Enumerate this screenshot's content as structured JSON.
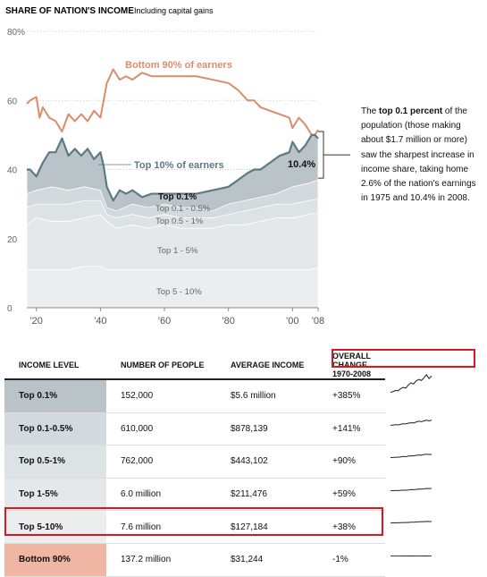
{
  "title": "SHARE OF NATION'S INCOME",
  "subtitle": "Including capital gains",
  "callout": {
    "pre": "The ",
    "bold": "top 0.1 percent",
    "post": " of the population (those making about $1.7 million or more) saw the sharpest increase in income share, taking home 2.6% of the nation's earnings in 1975 and 10.4% in 2008."
  },
  "chart_data": {
    "type": "area",
    "ylim": [
      0,
      80
    ],
    "xlim": [
      1917,
      2008
    ],
    "y_ticks": [
      "80%",
      "60",
      "40",
      "20",
      "0"
    ],
    "y_tick_values": [
      80,
      60,
      40,
      20,
      0
    ],
    "x_ticks": [
      "'20",
      "'40",
      "'60",
      "'80",
      "'00",
      "'08"
    ],
    "x_tick_values": [
      1920,
      1940,
      1960,
      1980,
      2000,
      2008
    ],
    "grid": true,
    "labels": {
      "bottom90": "Bottom 90% of earners",
      "top10": "Top 10% of earners",
      "top01": "Top 0.1%",
      "top01_05": "Top 0.1 - 0.5%",
      "top05_1": "Top 0.5 - 1%",
      "top1_5": "Top 1 - 5%",
      "top5_10": "Top 5 - 10%",
      "end_value": "10.4%"
    },
    "series": [
      {
        "name": "Top 5 - 10%",
        "color": "#ebeeef",
        "points": [
          [
            1917,
            11
          ],
          [
            1920,
            11
          ],
          [
            1925,
            11
          ],
          [
            1930,
            11
          ],
          [
            1935,
            12
          ],
          [
            1940,
            12
          ],
          [
            1942,
            11
          ],
          [
            1945,
            11
          ],
          [
            1950,
            11
          ],
          [
            1955,
            11
          ],
          [
            1960,
            11
          ],
          [
            1965,
            11
          ],
          [
            1970,
            11
          ],
          [
            1975,
            11
          ],
          [
            1980,
            11
          ],
          [
            1985,
            11
          ],
          [
            1990,
            11
          ],
          [
            1995,
            11
          ],
          [
            2000,
            11
          ],
          [
            2005,
            11
          ],
          [
            2008,
            11.5
          ]
        ]
      },
      {
        "name": "Top 1 - 5%",
        "color": "#e4e8ea",
        "points": [
          [
            1917,
            24
          ],
          [
            1920,
            26
          ],
          [
            1925,
            25
          ],
          [
            1930,
            25
          ],
          [
            1935,
            26
          ],
          [
            1940,
            27
          ],
          [
            1942,
            25
          ],
          [
            1945,
            23
          ],
          [
            1950,
            24
          ],
          [
            1955,
            23
          ],
          [
            1960,
            24
          ],
          [
            1965,
            23
          ],
          [
            1970,
            23
          ],
          [
            1975,
            23
          ],
          [
            1980,
            24
          ],
          [
            1985,
            24
          ],
          [
            1990,
            25
          ],
          [
            1995,
            26
          ],
          [
            2000,
            26
          ],
          [
            2005,
            27
          ],
          [
            2008,
            27.5
          ]
        ]
      },
      {
        "name": "Top 0.5 - 1%",
        "color": "#dde2e5",
        "points": [
          [
            1917,
            29
          ],
          [
            1920,
            30
          ],
          [
            1925,
            30
          ],
          [
            1930,
            30
          ],
          [
            1935,
            31
          ],
          [
            1940,
            31
          ],
          [
            1942,
            27
          ],
          [
            1945,
            26
          ],
          [
            1950,
            27
          ],
          [
            1955,
            26
          ],
          [
            1960,
            27
          ],
          [
            1965,
            26
          ],
          [
            1970,
            26
          ],
          [
            1975,
            26
          ],
          [
            1980,
            27
          ],
          [
            1985,
            28
          ],
          [
            1990,
            29
          ],
          [
            1995,
            30
          ],
          [
            2000,
            30
          ],
          [
            2005,
            31
          ],
          [
            2008,
            31.5
          ]
        ]
      },
      {
        "name": "Top 0.1 - 0.5%",
        "color": "#d3d9dd",
        "points": [
          [
            1917,
            33
          ],
          [
            1920,
            34
          ],
          [
            1925,
            35
          ],
          [
            1930,
            34
          ],
          [
            1935,
            35
          ],
          [
            1940,
            34
          ],
          [
            1942,
            29
          ],
          [
            1945,
            28
          ],
          [
            1950,
            30
          ],
          [
            1955,
            29
          ],
          [
            1960,
            30
          ],
          [
            1965,
            29
          ],
          [
            1970,
            29
          ],
          [
            1975,
            28
          ],
          [
            1980,
            30
          ],
          [
            1985,
            31
          ],
          [
            1990,
            32
          ],
          [
            1995,
            33
          ],
          [
            2000,
            35
          ],
          [
            2005,
            36
          ],
          [
            2008,
            37
          ]
        ]
      },
      {
        "name": "Top 0.1%",
        "color": "#b9c3c8",
        "points": [
          [
            1917,
            40
          ],
          [
            1918,
            40
          ],
          [
            1920,
            38
          ],
          [
            1922,
            42
          ],
          [
            1924,
            45
          ],
          [
            1926,
            45
          ],
          [
            1928,
            49
          ],
          [
            1930,
            44
          ],
          [
            1932,
            46
          ],
          [
            1934,
            44
          ],
          [
            1936,
            46
          ],
          [
            1938,
            43
          ],
          [
            1940,
            45
          ],
          [
            1941,
            41
          ],
          [
            1942,
            35
          ],
          [
            1944,
            31
          ],
          [
            1946,
            34
          ],
          [
            1948,
            33
          ],
          [
            1950,
            34
          ],
          [
            1953,
            32
          ],
          [
            1956,
            33
          ],
          [
            1960,
            33
          ],
          [
            1963,
            33
          ],
          [
            1966,
            33
          ],
          [
            1970,
            33
          ],
          [
            1975,
            34
          ],
          [
            1980,
            35
          ],
          [
            1983,
            37
          ],
          [
            1986,
            39
          ],
          [
            1988,
            40
          ],
          [
            1990,
            40
          ],
          [
            1993,
            42
          ],
          [
            1996,
            44
          ],
          [
            1999,
            45
          ],
          [
            2000,
            48
          ],
          [
            2002,
            45
          ],
          [
            2004,
            47
          ],
          [
            2006,
            50
          ],
          [
            2007,
            50
          ],
          [
            2008,
            49
          ]
        ]
      }
    ],
    "bottom90_line": [
      [
        1917,
        59
      ],
      [
        1918,
        60
      ],
      [
        1920,
        61
      ],
      [
        1921,
        55
      ],
      [
        1922,
        58
      ],
      [
        1924,
        55
      ],
      [
        1926,
        54
      ],
      [
        1928,
        51
      ],
      [
        1930,
        56
      ],
      [
        1932,
        54
      ],
      [
        1934,
        56
      ],
      [
        1936,
        54
      ],
      [
        1938,
        57
      ],
      [
        1940,
        55
      ],
      [
        1941,
        60
      ],
      [
        1942,
        65
      ],
      [
        1944,
        69
      ],
      [
        1946,
        66
      ],
      [
        1948,
        67
      ],
      [
        1950,
        66
      ],
      [
        1953,
        68
      ],
      [
        1956,
        67
      ],
      [
        1960,
        67
      ],
      [
        1963,
        67
      ],
      [
        1966,
        67
      ],
      [
        1970,
        67
      ],
      [
        1975,
        66
      ],
      [
        1980,
        65
      ],
      [
        1983,
        63
      ],
      [
        1986,
        60
      ],
      [
        1988,
        60
      ],
      [
        1990,
        58
      ],
      [
        1993,
        57
      ],
      [
        1996,
        56
      ],
      [
        1999,
        55
      ],
      [
        2000,
        52
      ],
      [
        2002,
        55
      ],
      [
        2004,
        53
      ],
      [
        2006,
        50
      ],
      [
        2007,
        50
      ],
      [
        2008,
        51.5
      ]
    ],
    "top10_line": [
      [
        1917,
        40
      ],
      [
        1918,
        40
      ],
      [
        1920,
        38
      ],
      [
        1922,
        42
      ],
      [
        1924,
        45
      ],
      [
        1926,
        45
      ],
      [
        1928,
        49
      ],
      [
        1930,
        44
      ],
      [
        1932,
        46
      ],
      [
        1934,
        44
      ],
      [
        1936,
        46
      ],
      [
        1938,
        43
      ],
      [
        1940,
        45
      ],
      [
        1941,
        41
      ],
      [
        1942,
        35
      ],
      [
        1944,
        31
      ],
      [
        1946,
        34
      ],
      [
        1948,
        33
      ],
      [
        1950,
        34
      ],
      [
        1953,
        32
      ],
      [
        1956,
        33
      ],
      [
        1960,
        33
      ],
      [
        1963,
        33
      ],
      [
        1966,
        33
      ],
      [
        1970,
        33
      ],
      [
        1975,
        34
      ],
      [
        1980,
        35
      ],
      [
        1983,
        37
      ],
      [
        1986,
        39
      ],
      [
        1988,
        40
      ],
      [
        1990,
        40
      ],
      [
        1993,
        42
      ],
      [
        1996,
        44
      ],
      [
        1999,
        45
      ],
      [
        2000,
        48
      ],
      [
        2002,
        45
      ],
      [
        2004,
        47
      ],
      [
        2006,
        50
      ],
      [
        2007,
        50
      ],
      [
        2008,
        49
      ]
    ]
  },
  "table": {
    "headers": [
      "INCOME LEVEL",
      "NUMBER OF PEOPLE",
      "AVERAGE INCOME",
      "OVERALL CHANGE 1970-2008"
    ],
    "rows": [
      {
        "level": "Top 0.1%",
        "people": "152,000",
        "income": "$5.6 million",
        "change": "+385%",
        "cell_color": "#b9c3c8"
      },
      {
        "level": "Top 0.1-0.5%",
        "people": "610,000",
        "income": "$878,139",
        "change": "+141%",
        "cell_color": "#d3d9dd"
      },
      {
        "level": "Top 0.5-1%",
        "people": "762,000",
        "income": "$443,102",
        "change": "+90%",
        "cell_color": "#dde2e5"
      },
      {
        "level": "Top 1-5%",
        "people": "6.0 million",
        "income": "$211,476",
        "change": "+59%",
        "cell_color": "#e4e8ea"
      },
      {
        "level": "Top 5-10%",
        "people": "7.6 million",
        "income": "$127,184",
        "change": "+38%",
        "cell_color": "#ebeeef"
      },
      {
        "level": "Bottom 90%",
        "people": "137.2 million",
        "income": "$31,244",
        "change": "-1%",
        "cell_color": "#eeb6a3"
      }
    ],
    "sparklines": [
      [
        1,
        1.2,
        1.5,
        1.4,
        2,
        2.3,
        2.1,
        3,
        3.5,
        3.2,
        4,
        4.4,
        4.1,
        4.8,
        5.6,
        4.6,
        5.3
      ],
      [
        1,
        1.1,
        1.2,
        1.15,
        1.3,
        1.45,
        1.4,
        1.6,
        1.7,
        1.65,
        1.9,
        2.1,
        2.0,
        2.2,
        2.4,
        2.2,
        2.4
      ],
      [
        1,
        1.05,
        1.1,
        1.1,
        1.2,
        1.3,
        1.25,
        1.4,
        1.5,
        1.45,
        1.6,
        1.7,
        1.65,
        1.8,
        1.9,
        1.8,
        1.9
      ],
      [
        1,
        1.03,
        1.05,
        1.06,
        1.1,
        1.15,
        1.14,
        1.2,
        1.3,
        1.27,
        1.35,
        1.45,
        1.43,
        1.5,
        1.6,
        1.55,
        1.59
      ],
      [
        1,
        1.02,
        1.04,
        1.05,
        1.08,
        1.1,
        1.1,
        1.15,
        1.2,
        1.2,
        1.25,
        1.3,
        1.3,
        1.35,
        1.4,
        1.37,
        1.38
      ],
      [
        1,
        0.99,
        1.0,
        0.98,
        1.0,
        1.01,
        1.0,
        1.02,
        1.03,
        1.01,
        1.0,
        0.99,
        1.0,
        1.02,
        1.01,
        0.99,
        0.99
      ]
    ]
  },
  "colors": {
    "bottom90": "#d98c6e",
    "top10": "#5d7a83",
    "highlight": "#e0141e",
    "grid": "#cccccc"
  }
}
